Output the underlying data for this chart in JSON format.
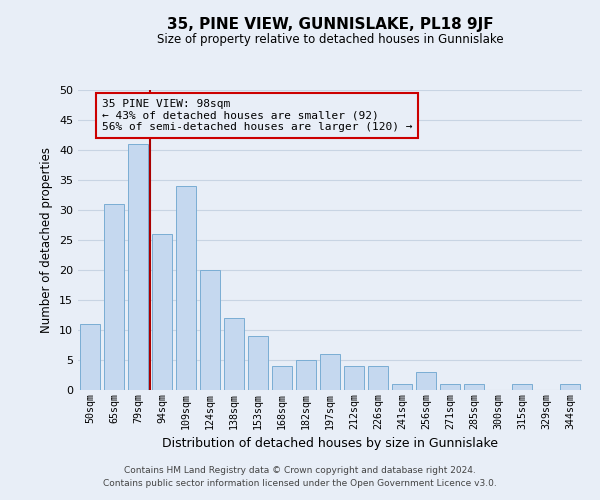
{
  "title": "35, PINE VIEW, GUNNISLAKE, PL18 9JF",
  "subtitle": "Size of property relative to detached houses in Gunnislake",
  "xlabel": "Distribution of detached houses by size in Gunnislake",
  "ylabel": "Number of detached properties",
  "bar_labels": [
    "50sqm",
    "65sqm",
    "79sqm",
    "94sqm",
    "109sqm",
    "124sqm",
    "138sqm",
    "153sqm",
    "168sqm",
    "182sqm",
    "197sqm",
    "212sqm",
    "226sqm",
    "241sqm",
    "256sqm",
    "271sqm",
    "285sqm",
    "300sqm",
    "315sqm",
    "329sqm",
    "344sqm"
  ],
  "bar_values": [
    11,
    31,
    41,
    26,
    34,
    20,
    12,
    9,
    4,
    5,
    6,
    4,
    4,
    1,
    3,
    1,
    1,
    0,
    1,
    0,
    1
  ],
  "bar_color": "#c5d8ef",
  "bar_edge_color": "#7aadd4",
  "grid_color": "#c8d4e3",
  "background_color": "#e8eef7",
  "vline_x_index": 2.5,
  "vline_color": "#aa0000",
  "annotation_text": "35 PINE VIEW: 98sqm\n← 43% of detached houses are smaller (92)\n56% of semi-detached houses are larger (120) →",
  "annotation_box_edge": "#cc0000",
  "ylim": [
    0,
    50
  ],
  "yticks": [
    0,
    5,
    10,
    15,
    20,
    25,
    30,
    35,
    40,
    45,
    50
  ],
  "footer_line1": "Contains HM Land Registry data © Crown copyright and database right 2024.",
  "footer_line2": "Contains public sector information licensed under the Open Government Licence v3.0."
}
